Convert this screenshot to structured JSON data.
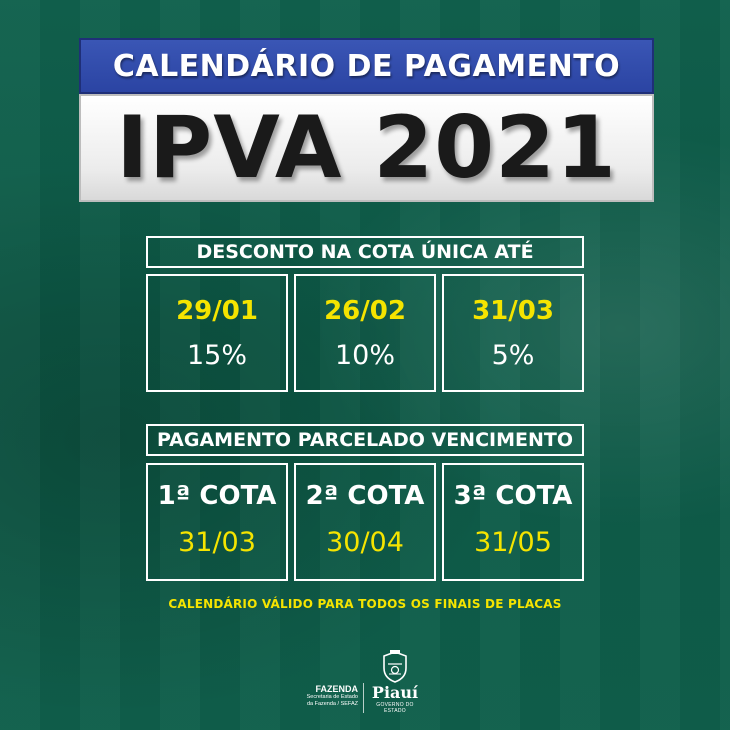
{
  "header": {
    "subtitle": "CALENDÁRIO DE PAGAMENTO",
    "title": "IPVA 2021"
  },
  "discount": {
    "heading": "DESCONTO NA  COTA ÚNICA ATÉ",
    "items": [
      {
        "date": "29/01",
        "percent": "15%"
      },
      {
        "date": "26/02",
        "percent": "10%"
      },
      {
        "date": "31/03",
        "percent": "5%"
      }
    ]
  },
  "installments": {
    "heading": "PAGAMENTO PARCELADO VENCIMENTO",
    "items": [
      {
        "label": "1ª COTA",
        "date": "31/03"
      },
      {
        "label": "2ª COTA",
        "date": "30/04"
      },
      {
        "label": "3ª COTA",
        "date": "31/05"
      }
    ]
  },
  "footnote": "CALENDÁRIO  VÁLIDO PARA TODOS OS FINAIS DE PLACAS",
  "logos": {
    "fazenda_title": "FAZENDA",
    "fazenda_sub1": "Secretaria de Estado",
    "fazenda_sub2": "da Fazenda / SEFAZ",
    "state_name": "Piauí",
    "state_sub": "GOVERNO DO ESTADO",
    "crest_icon": "piaui-coat-of-arms-icon"
  },
  "colors": {
    "background": "#0e5c49",
    "header_blue": "#2b44a3",
    "accent_yellow": "#f5e400",
    "text_white": "#ffffff"
  }
}
